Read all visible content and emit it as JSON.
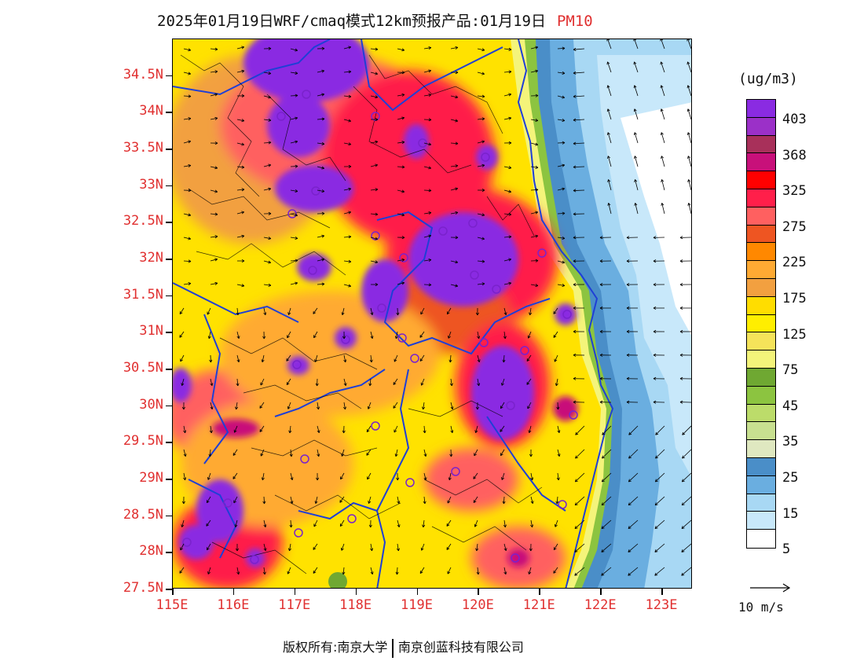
{
  "title": {
    "text": "2025年01月19日WRF/cmaq模式12km预报产品:01月19日",
    "variable": "PM10"
  },
  "axes": {
    "lat_labels": [
      "34.5N",
      "34N",
      "33.5N",
      "33N",
      "32.5N",
      "32N",
      "31.5N",
      "31N",
      "30.5N",
      "30N",
      "29.5N",
      "29N",
      "28.5N",
      "28N",
      "27.5N"
    ],
    "lon_labels": [
      "115E",
      "116E",
      "117E",
      "118E",
      "119E",
      "120E",
      "121E",
      "122E",
      "123E"
    ],
    "lat_range": [
      27.5,
      35.0
    ],
    "lon_range": [
      115.0,
      123.5
    ]
  },
  "colorbar": {
    "unit": "(ug/m3)",
    "labels": [
      "403",
      "368",
      "325",
      "275",
      "225",
      "175",
      "125",
      "75",
      "45",
      "35",
      "25",
      "15",
      "5"
    ],
    "colors": [
      "#8a2be2",
      "#9b30c8",
      "#a8305a",
      "#c8107a",
      "#ff0000",
      "#ff1f4a",
      "#ff6060",
      "#ee5522",
      "#ff8800",
      "#ffaa33",
      "#f2a040",
      "#ffdd00",
      "#ffee00",
      "#f5e35a",
      "#f4f47a",
      "#6fa832",
      "#8cc440",
      "#bcdc6a",
      "#c8e090",
      "#dfe8c0",
      "#4a8ec8",
      "#6aaee0",
      "#a8d8f4",
      "#c8e8fa",
      "#ffffff"
    ]
  },
  "wind": {
    "reference_label": "10 m/s"
  },
  "copyright": {
    "left": "版权所有:南京大学",
    "right": "南京创蓝科技有限公司"
  }
}
